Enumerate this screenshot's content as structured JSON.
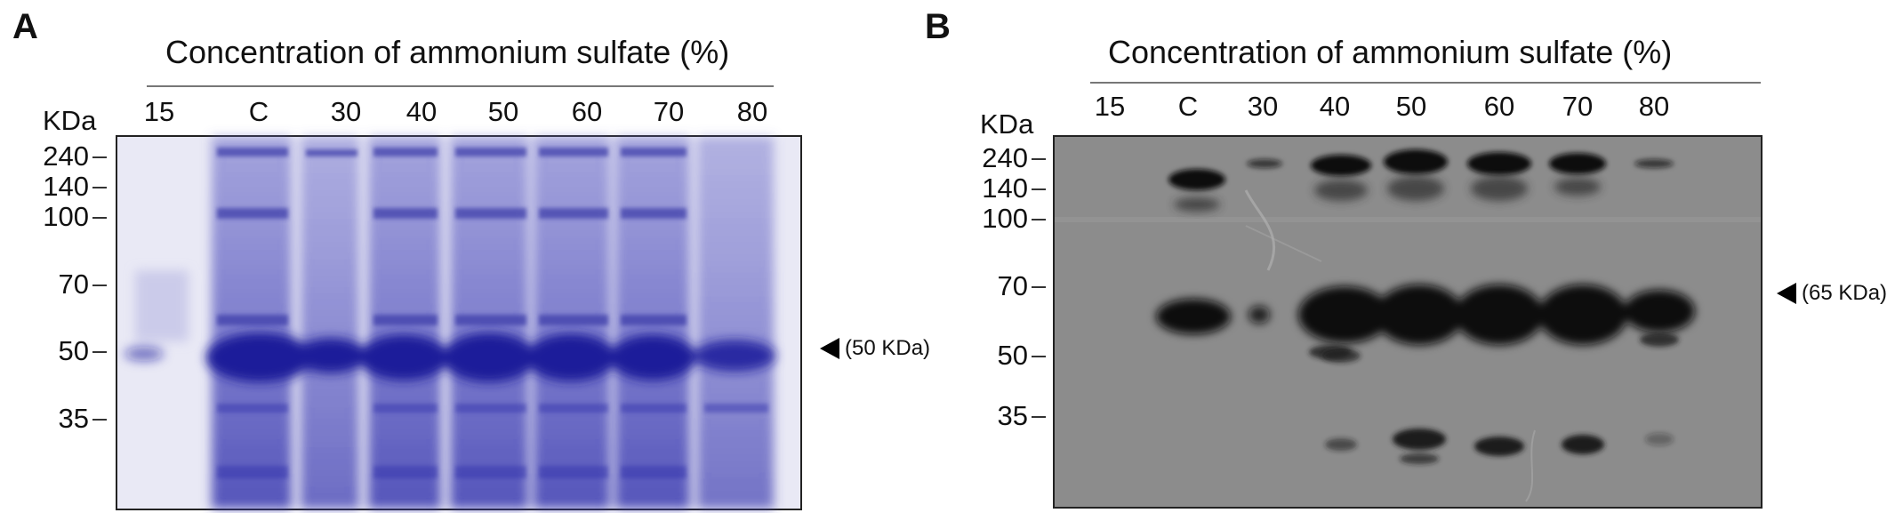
{
  "panel_a": {
    "letter": "A",
    "title": "Concentration of ammonium sulfate (%)",
    "lanes": [
      "15",
      "C",
      "30",
      "40",
      "50",
      "60",
      "70",
      "80"
    ],
    "unit": "KDa",
    "markers": [
      "240",
      "140",
      "100",
      "70",
      "50",
      "35"
    ],
    "annotation": "(50 KDa)",
    "stain_color": "#2a2aa8"
  },
  "panel_b": {
    "letter": "B",
    "title": "Concentration of ammonium sulfate (%)",
    "lanes": [
      "15",
      "C",
      "30",
      "40",
      "50",
      "60",
      "70",
      "80"
    ],
    "unit": "KDa",
    "markers": [
      "240",
      "140",
      "100",
      "70",
      "50",
      "35"
    ],
    "annotation": "(65 KDa)",
    "film_color": "#8e8e8e"
  },
  "icons": [
    "arrowhead-left-icon"
  ]
}
